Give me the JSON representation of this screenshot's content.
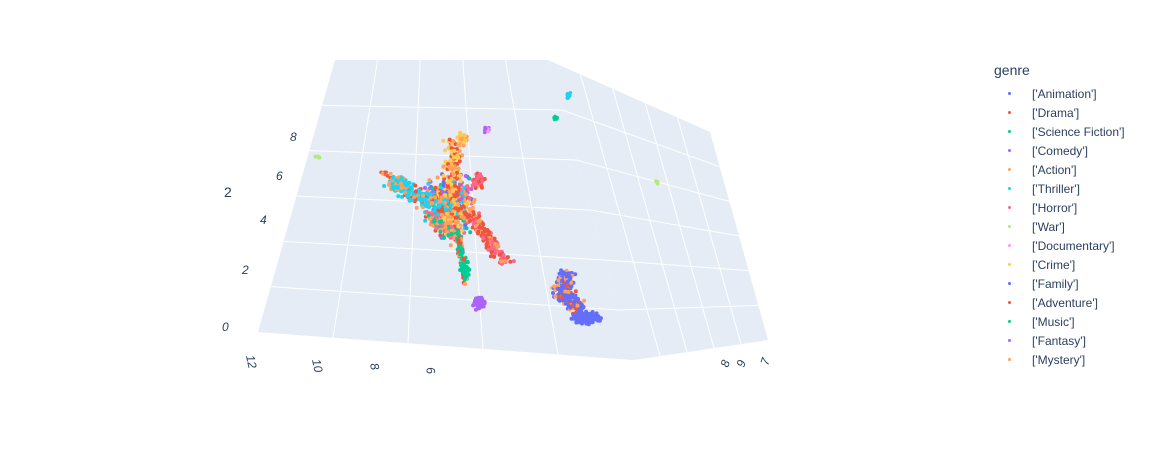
{
  "chart_data": {
    "type": "scatter",
    "projection": "3d",
    "legend_title": "genre",
    "legend_placement": "right",
    "axes": {
      "z": {
        "title": "2",
        "ticks": [
          "0",
          "2",
          "4",
          "6",
          "8"
        ]
      },
      "x": {
        "ticks": [
          "12",
          "10",
          "8",
          "6"
        ]
      },
      "y": {
        "ticks": [
          "8",
          "9",
          "7"
        ]
      }
    },
    "series": [
      {
        "name": "['Animation']",
        "color": "#636efa"
      },
      {
        "name": "['Drama']",
        "color": "#EF553B"
      },
      {
        "name": "['Science Fiction']",
        "color": "#00cc96"
      },
      {
        "name": "['Comedy']",
        "color": "#ab63fa"
      },
      {
        "name": "['Action']",
        "color": "#FFA15A"
      },
      {
        "name": "['Thriller']",
        "color": "#19d3f3"
      },
      {
        "name": "['Horror']",
        "color": "#FF6692"
      },
      {
        "name": "['War']",
        "color": "#B6E880"
      },
      {
        "name": "['Documentary']",
        "color": "#FF97FF"
      },
      {
        "name": "['Crime']",
        "color": "#FECB52"
      },
      {
        "name": "['Family']",
        "color": "#636efa"
      },
      {
        "name": "['Adventure']",
        "color": "#EF553B"
      },
      {
        "name": "['Music']",
        "color": "#00cc96"
      },
      {
        "name": "['Fantasy']",
        "color": "#ab63fa"
      },
      {
        "name": "['Mystery']",
        "color": "#FFA15A"
      }
    ]
  }
}
